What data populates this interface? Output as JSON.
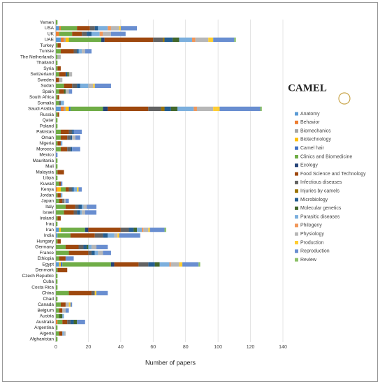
{
  "chart_data": {
    "type": "stacked-barh",
    "x_label": "Number of papers",
    "logo": "CAMEL",
    "legend": "right",
    "grid": true,
    "xlim": [
      0,
      140
    ],
    "xticks": [
      0,
      20,
      40,
      60,
      80,
      100,
      120,
      140
    ],
    "categories": [
      "Yemen",
      "USA",
      "UK",
      "UAE",
      "Turkey",
      "Tunisie",
      "The Netherlands",
      "Thailand",
      "Syria",
      "Switzerland",
      "Sweden",
      "Sudan",
      "Spain",
      "South Africa",
      "Somalia",
      "Saudi Arabia",
      "Russia",
      "Qatar",
      "Poland",
      "Pakistan",
      "Oman",
      "Nigeria",
      "Morocco",
      "Mexico",
      "Mauritania",
      "Mali",
      "Malaysia",
      "Libya",
      "Kuwait",
      "Kenya",
      "Jordan",
      "Japan",
      "Italy",
      "Israel",
      "Ireland",
      "Iraq",
      "Iran",
      "India",
      "Hungary",
      "Germany",
      "France",
      "Ethiopia",
      "Egypt",
      "Denmark",
      "Czech Republic",
      "Cuba",
      "Costa Rica",
      "China",
      "Chad",
      "Canada",
      "Belgium",
      "Austria",
      "Australia",
      "Argentina",
      "Algeria",
      "Afghanistan"
    ],
    "series": [
      {
        "name": "Anatomy",
        "color": "#5b9bd5",
        "values": [
          0,
          2,
          0,
          3,
          0,
          0,
          0,
          0,
          0,
          0,
          0,
          0,
          0,
          0,
          0,
          3,
          0,
          0,
          0,
          0,
          0,
          0,
          0,
          0,
          0,
          0,
          0,
          0,
          0,
          0,
          0,
          0,
          0,
          0,
          0,
          0,
          2,
          1,
          0,
          0,
          0,
          0,
          2,
          0,
          0,
          0,
          0,
          0,
          0,
          0,
          0,
          0,
          0,
          0,
          0,
          0
        ]
      },
      {
        "name": "Behavior",
        "color": "#ed7d31",
        "values": [
          0,
          1,
          2,
          2,
          0,
          0,
          0,
          0,
          0,
          0,
          0,
          0,
          0,
          0,
          0,
          2,
          0,
          0,
          0,
          0,
          0,
          0,
          0,
          0,
          0,
          0,
          0,
          0,
          0,
          1,
          0,
          0,
          0,
          0,
          0,
          0,
          0,
          0,
          0,
          0,
          0,
          0,
          0,
          0,
          0,
          0,
          0,
          0,
          0,
          0,
          0,
          0,
          1,
          0,
          0,
          0
        ]
      },
      {
        "name": "Biomechanics",
        "color": "#a5a5a5",
        "values": [
          0,
          0,
          0,
          1,
          0,
          0,
          0,
          0,
          0,
          0,
          0,
          0,
          0,
          0,
          0,
          1,
          0,
          0,
          0,
          0,
          0,
          0,
          0,
          0,
          0,
          0,
          0,
          0,
          0,
          0,
          0,
          0,
          0,
          0,
          0,
          0,
          0,
          0,
          0,
          0,
          0,
          0,
          0,
          0,
          0,
          0,
          0,
          0,
          0,
          0,
          0,
          0,
          0,
          0,
          0,
          0
        ]
      },
      {
        "name": "Biotechnology",
        "color": "#ffc000",
        "values": [
          0,
          0,
          0,
          2,
          0,
          0,
          0,
          0,
          0,
          0,
          0,
          0,
          0,
          0,
          0,
          2,
          0,
          0,
          0,
          0,
          0,
          0,
          0,
          0,
          0,
          0,
          0,
          0,
          0,
          2,
          0,
          0,
          0,
          0,
          0,
          0,
          1,
          0,
          0,
          0,
          0,
          0,
          1,
          0,
          0,
          0,
          0,
          0,
          0,
          0,
          0,
          0,
          0,
          0,
          0,
          0
        ]
      },
      {
        "name": "Camel hair",
        "color": "#4472c4",
        "values": [
          0,
          0,
          0,
          0,
          0,
          0,
          0,
          0,
          0,
          0,
          0,
          0,
          0,
          0,
          0,
          1,
          0,
          0,
          0,
          0,
          0,
          0,
          0,
          0,
          0,
          0,
          0,
          0,
          0,
          0,
          0,
          0,
          0,
          0,
          0,
          0,
          0,
          0,
          0,
          0,
          0,
          0,
          1,
          0,
          0,
          0,
          0,
          0,
          0,
          0,
          0,
          0,
          0,
          0,
          0,
          0
        ]
      },
      {
        "name": "Clinics and Biomedicine",
        "color": "#70ad47",
        "values": [
          1,
          10,
          8,
          20,
          1,
          3,
          1,
          1,
          1,
          2,
          0,
          5,
          2,
          1,
          2,
          20,
          1,
          1,
          1,
          3,
          3,
          1,
          3,
          0,
          1,
          1,
          1,
          1,
          2,
          3,
          1,
          2,
          6,
          5,
          1,
          1,
          15,
          8,
          1,
          6,
          8,
          2,
          30,
          1,
          1,
          1,
          1,
          8,
          1,
          3,
          2,
          2,
          3,
          1,
          2,
          1
        ]
      },
      {
        "name": "Ecology",
        "color": "#264478",
        "values": [
          0,
          0,
          0,
          2,
          0,
          0,
          0,
          0,
          0,
          0,
          0,
          0,
          0,
          0,
          0,
          3,
          0,
          0,
          0,
          0,
          0,
          0,
          0,
          0,
          0,
          0,
          0,
          0,
          0,
          0,
          0,
          0,
          0,
          0,
          0,
          0,
          2,
          0,
          0,
          0,
          0,
          0,
          2,
          0,
          0,
          0,
          0,
          0,
          0,
          0,
          0,
          0,
          0,
          0,
          0,
          0
        ]
      },
      {
        "name": "Food Science and Technology",
        "color": "#9e480e",
        "values": [
          0,
          8,
          6,
          30,
          2,
          8,
          0,
          0,
          2,
          4,
          2,
          5,
          3,
          1,
          0,
          25,
          1,
          0,
          0,
          5,
          4,
          2,
          4,
          0,
          0,
          0,
          4,
          0,
          1,
          2,
          2,
          2,
          6,
          6,
          2,
          0,
          20,
          15,
          2,
          8,
          12,
          4,
          15,
          6,
          0,
          0,
          0,
          14,
          0,
          3,
          2,
          0,
          3,
          0,
          2,
          0
        ]
      },
      {
        "name": "Infectious diseases",
        "color": "#636363",
        "values": [
          0,
          3,
          3,
          6,
          0,
          2,
          0,
          0,
          0,
          0,
          0,
          3,
          0,
          0,
          1,
          8,
          0,
          0,
          0,
          2,
          2,
          0,
          2,
          0,
          0,
          0,
          0,
          0,
          0,
          2,
          0,
          1,
          2,
          2,
          0,
          0,
          5,
          5,
          0,
          3,
          2,
          0,
          6,
          0,
          0,
          0,
          0,
          2,
          0,
          0,
          0,
          0,
          2,
          0,
          0,
          0
        ]
      },
      {
        "name": "Injuries by camels",
        "color": "#997300",
        "values": [
          0,
          0,
          0,
          1,
          0,
          0,
          0,
          0,
          0,
          0,
          0,
          0,
          0,
          0,
          0,
          2,
          0,
          0,
          0,
          0,
          0,
          0,
          0,
          0,
          0,
          0,
          0,
          0,
          0,
          0,
          0,
          0,
          0,
          0,
          0,
          0,
          0,
          0,
          0,
          0,
          0,
          0,
          0,
          0,
          0,
          0,
          0,
          0,
          0,
          0,
          0,
          0,
          0,
          0,
          0,
          0
        ]
      },
      {
        "name": "Microbiology",
        "color": "#255e91",
        "values": [
          0,
          2,
          3,
          5,
          0,
          1,
          0,
          0,
          0,
          1,
          0,
          2,
          0,
          0,
          0,
          4,
          0,
          0,
          0,
          1,
          1,
          0,
          1,
          0,
          0,
          0,
          0,
          0,
          0,
          1,
          0,
          0,
          2,
          2,
          0,
          0,
          3,
          3,
          0,
          2,
          2,
          0,
          4,
          0,
          0,
          0,
          0,
          0,
          0,
          0,
          0,
          0,
          2,
          0,
          0,
          0
        ]
      },
      {
        "name": "Molecular genetics",
        "color": "#43682b",
        "values": [
          0,
          0,
          0,
          4,
          0,
          0,
          0,
          0,
          0,
          1,
          0,
          0,
          1,
          0,
          0,
          4,
          0,
          0,
          0,
          0,
          0,
          0,
          0,
          0,
          0,
          0,
          0,
          0,
          0,
          0,
          0,
          0,
          0,
          0,
          0,
          0,
          2,
          0,
          0,
          1,
          0,
          0,
          3,
          0,
          0,
          0,
          0,
          0,
          0,
          0,
          0,
          2,
          2,
          0,
          0,
          0
        ]
      },
      {
        "name": "Parasitic diseases",
        "color": "#7cafdd",
        "values": [
          0,
          6,
          5,
          8,
          0,
          2,
          0,
          0,
          0,
          0,
          0,
          5,
          0,
          0,
          2,
          10,
          0,
          0,
          0,
          0,
          0,
          1,
          0,
          0,
          0,
          0,
          0,
          0,
          0,
          2,
          1,
          0,
          1,
          1,
          0,
          0,
          3,
          4,
          0,
          2,
          2,
          0,
          6,
          0,
          0,
          0,
          0,
          0,
          0,
          0,
          0,
          1,
          0,
          0,
          1,
          0
        ]
      },
      {
        "name": "Philogeny",
        "color": "#f1975a",
        "values": [
          0,
          2,
          2,
          2,
          0,
          0,
          0,
          0,
          0,
          0,
          0,
          0,
          0,
          0,
          0,
          2,
          0,
          0,
          0,
          0,
          0,
          0,
          0,
          0,
          0,
          0,
          0,
          0,
          0,
          0,
          0,
          0,
          0,
          0,
          0,
          0,
          1,
          0,
          0,
          0,
          0,
          0,
          1,
          0,
          0,
          0,
          0,
          0,
          0,
          0,
          0,
          0,
          0,
          0,
          0,
          0
        ]
      },
      {
        "name": "Physiology",
        "color": "#b7b7b7",
        "values": [
          0,
          5,
          5,
          8,
          0,
          2,
          2,
          0,
          0,
          2,
          2,
          3,
          2,
          0,
          0,
          10,
          0,
          0,
          0,
          0,
          2,
          0,
          0,
          0,
          0,
          0,
          0,
          0,
          0,
          0,
          0,
          1,
          2,
          2,
          0,
          0,
          3,
          2,
          0,
          3,
          3,
          0,
          5,
          0,
          0,
          0,
          0,
          0,
          0,
          2,
          2,
          0,
          0,
          0,
          1,
          0
        ]
      },
      {
        "name": "Production",
        "color": "#ffcd33",
        "values": [
          0,
          1,
          0,
          3,
          0,
          0,
          0,
          0,
          0,
          0,
          0,
          1,
          0,
          0,
          0,
          4,
          0,
          0,
          0,
          0,
          0,
          0,
          0,
          0,
          0,
          0,
          0,
          0,
          0,
          1,
          0,
          0,
          0,
          0,
          0,
          0,
          1,
          1,
          0,
          0,
          0,
          0,
          2,
          0,
          0,
          0,
          0,
          1,
          0,
          1,
          0,
          0,
          0,
          0,
          0,
          0
        ]
      },
      {
        "name": "Reproduction",
        "color": "#698ed0",
        "values": [
          0,
          10,
          9,
          13,
          0,
          4,
          0,
          0,
          0,
          0,
          0,
          10,
          2,
          0,
          0,
          25,
          0,
          0,
          0,
          5,
          3,
          0,
          5,
          1,
          0,
          0,
          0,
          0,
          1,
          2,
          0,
          2,
          6,
          7,
          0,
          0,
          9,
          13,
          0,
          7,
          5,
          5,
          10,
          0,
          0,
          0,
          0,
          7,
          0,
          1,
          2,
          0,
          5,
          0,
          0,
          0
        ]
      },
      {
        "name": "Review",
        "color": "#8cc168",
        "values": [
          0,
          0,
          0,
          1,
          0,
          0,
          0,
          0,
          0,
          0,
          0,
          0,
          0,
          0,
          0,
          1,
          0,
          0,
          0,
          0,
          0,
          0,
          0,
          0,
          0,
          0,
          0,
          0,
          0,
          0,
          0,
          0,
          0,
          0,
          0,
          0,
          1,
          0,
          0,
          0,
          0,
          0,
          1,
          0,
          0,
          0,
          0,
          0,
          0,
          0,
          0,
          0,
          0,
          0,
          0,
          0
        ]
      }
    ]
  }
}
